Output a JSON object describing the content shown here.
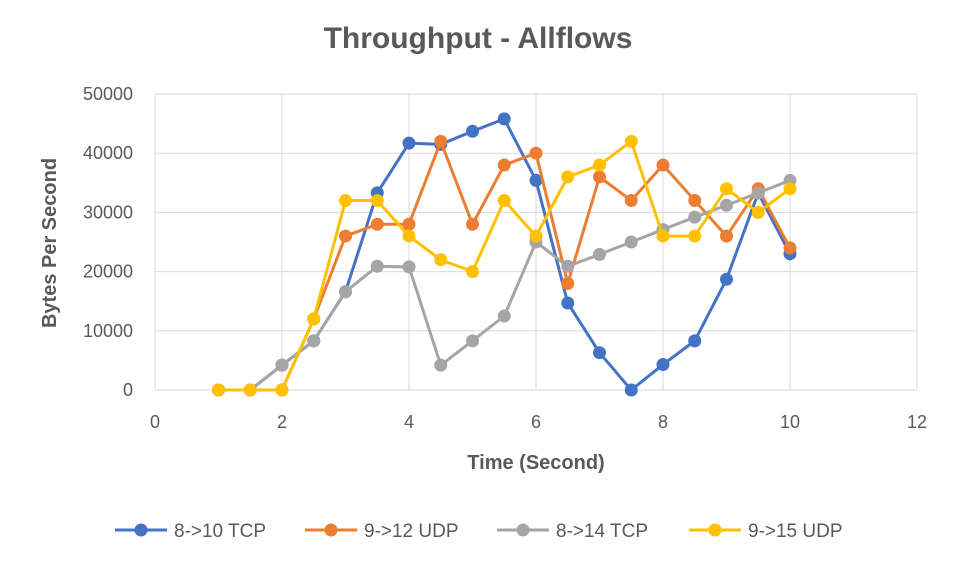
{
  "chart_data": {
    "type": "scatter",
    "title": "Throughput - Allflows",
    "xlabel": "Time (Second)",
    "ylabel": "Bytes Per Second",
    "xlim": [
      0,
      12
    ],
    "ylim": [
      0,
      50000
    ],
    "xticks": [
      0,
      2,
      4,
      6,
      8,
      10,
      12
    ],
    "yticks": [
      0,
      10000,
      20000,
      30000,
      40000,
      50000
    ],
    "grid": true,
    "legend_position": "bottom",
    "series": [
      {
        "name": "8->10 TCP",
        "color": "#4472C4",
        "x": [
          1,
          1.5,
          2,
          2.5,
          3,
          3.5,
          4,
          4.5,
          5,
          5.5,
          6,
          6.5,
          7,
          7.5,
          8,
          8.5,
          9,
          9.5,
          10
        ],
        "y": [
          0,
          0,
          4200,
          8300,
          16600,
          33300,
          41700,
          41500,
          43700,
          45800,
          35400,
          14700,
          6300,
          0,
          4300,
          8300,
          18700,
          33300,
          23000
        ]
      },
      {
        "name": "9->12 UDP",
        "color": "#ED7D31",
        "x": [
          1,
          1.5,
          2,
          2.5,
          3,
          3.5,
          4,
          4.5,
          5,
          5.5,
          6,
          6.5,
          7,
          7.5,
          8,
          8.5,
          9,
          9.5,
          10
        ],
        "y": [
          0,
          0,
          0,
          12000,
          26000,
          28000,
          28000,
          42000,
          28000,
          38000,
          40000,
          18000,
          36000,
          32000,
          38000,
          32000,
          26000,
          34000,
          24000
        ]
      },
      {
        "name": "8->14 TCP",
        "color": "#A5A5A5",
        "x": [
          1,
          1.5,
          2,
          2.5,
          3,
          3.5,
          4,
          4.5,
          5,
          5.5,
          6,
          6.5,
          7,
          7.5,
          8,
          8.5,
          9,
          9.5,
          10
        ],
        "y": [
          0,
          0,
          4200,
          8300,
          16600,
          20900,
          20800,
          4200,
          8300,
          12500,
          25000,
          20900,
          22900,
          25000,
          27100,
          29200,
          31200,
          33300,
          35400
        ]
      },
      {
        "name": "9->15 UDP",
        "color": "#FFC000",
        "x": [
          1,
          1.5,
          2,
          2.5,
          3,
          3.5,
          4,
          4.5,
          5,
          5.5,
          6,
          6.5,
          7,
          7.5,
          8,
          8.5,
          9,
          9.5,
          10
        ],
        "y": [
          0,
          0,
          0,
          12000,
          32000,
          32000,
          26000,
          22000,
          20000,
          32000,
          26000,
          36000,
          38000,
          42000,
          26000,
          26000,
          34000,
          30000,
          34000
        ]
      }
    ]
  }
}
